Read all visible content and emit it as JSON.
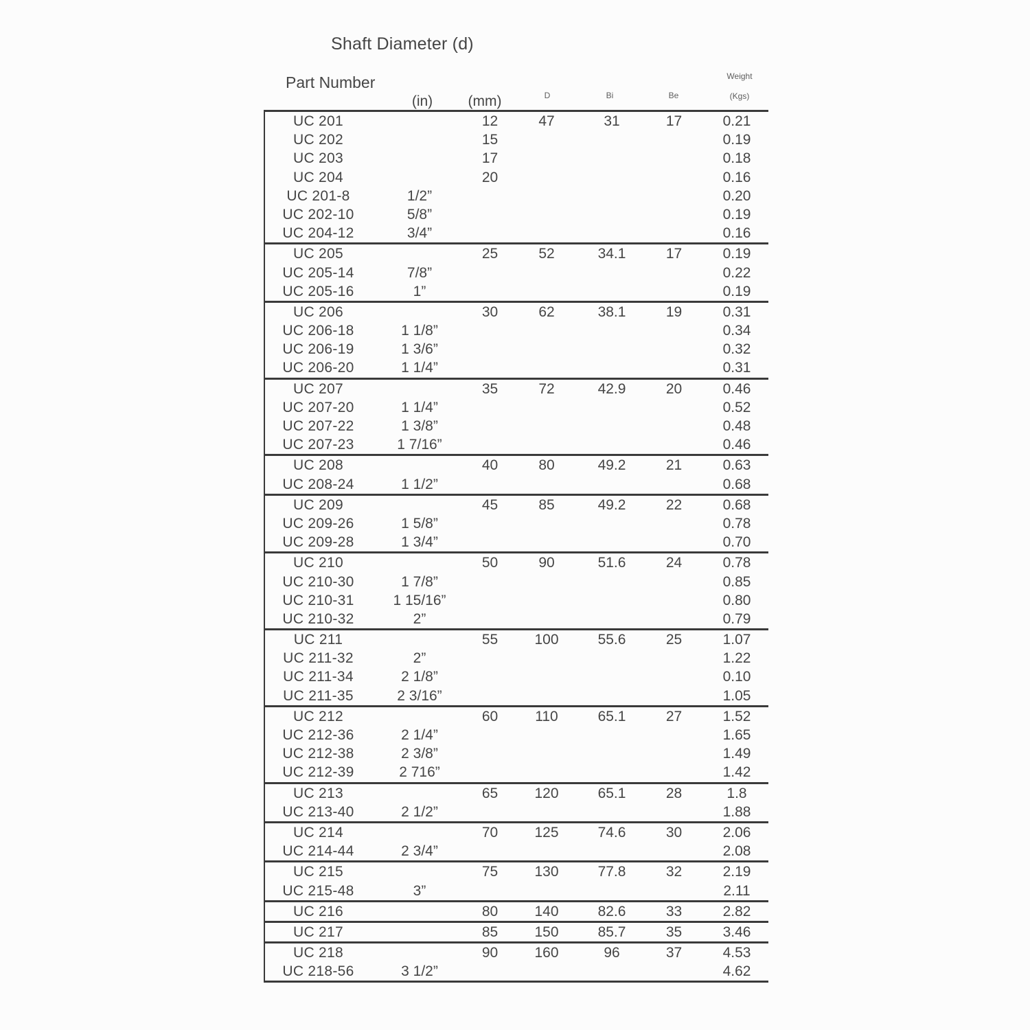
{
  "page": {
    "title": "Shaft Diameter (d)"
  },
  "colors": {
    "background": "#fcfcfc",
    "text": "#454545",
    "line": "#3a3a3a"
  },
  "header": {
    "part_number": "Part Number",
    "in_label": "(in)",
    "mm_label": "(mm)",
    "d_label": "D",
    "bi_label": "Bi",
    "be_label": "Be",
    "weight_label": "Weight",
    "kgs_label": "(Kgs)"
  },
  "table": {
    "columns": [
      "part-number",
      "shaft-diameter-in",
      "shaft-diameter-mm",
      "dim-d",
      "dim-bi",
      "dim-be",
      "weight-kgs"
    ],
    "groups": [
      [
        [
          "UC 201",
          "",
          "12",
          "47",
          "31",
          "17",
          "0.21"
        ],
        [
          "UC 202",
          "",
          "15",
          "",
          "",
          "",
          "0.19"
        ],
        [
          "UC 203",
          "",
          "17",
          "",
          "",
          "",
          "0.18"
        ],
        [
          "UC 204",
          "",
          "20",
          "",
          "",
          "",
          "0.16"
        ],
        [
          "UC 201-8",
          "1/2”",
          "",
          "",
          "",
          "",
          "0.20"
        ],
        [
          "UC 202-10",
          "5/8”",
          "",
          "",
          "",
          "",
          "0.19"
        ],
        [
          "UC 204-12",
          "3/4”",
          "",
          "",
          "",
          "",
          "0.16"
        ]
      ],
      [
        [
          "UC 205",
          "",
          "25",
          "52",
          "34.1",
          "17",
          "0.19"
        ],
        [
          "UC 205-14",
          "7/8”",
          "",
          "",
          "",
          "",
          "0.22"
        ],
        [
          "UC 205-16",
          "1”",
          "",
          "",
          "",
          "",
          "0.19"
        ]
      ],
      [
        [
          "UC 206",
          "",
          "30",
          "62",
          "38.1",
          "19",
          "0.31"
        ],
        [
          "UC 206-18",
          "1 1/8”",
          "",
          "",
          "",
          "",
          "0.34"
        ],
        [
          "UC 206-19",
          "1 3/6”",
          "",
          "",
          "",
          "",
          "0.32"
        ],
        [
          "UC 206-20",
          "1 1/4”",
          "",
          "",
          "",
          "",
          "0.31"
        ]
      ],
      [
        [
          "UC 207",
          "",
          "35",
          "72",
          "42.9",
          "20",
          "0.46"
        ],
        [
          "UC 207-20",
          "1 1/4”",
          "",
          "",
          "",
          "",
          "0.52"
        ],
        [
          "UC 207-22",
          "1 3/8”",
          "",
          "",
          "",
          "",
          "0.48"
        ],
        [
          "UC 207-23",
          "1 7/16”",
          "",
          "",
          "",
          "",
          "0.46"
        ]
      ],
      [
        [
          "UC 208",
          "",
          "40",
          "80",
          "49.2",
          "21",
          "0.63"
        ],
        [
          "UC 208-24",
          "1 1/2”",
          "",
          "",
          "",
          "",
          "0.68"
        ]
      ],
      [
        [
          "UC 209",
          "",
          "45",
          "85",
          "49.2",
          "22",
          "0.68"
        ],
        [
          "UC 209-26",
          "1 5/8”",
          "",
          "",
          "",
          "",
          "0.78"
        ],
        [
          "UC 209-28",
          "1 3/4”",
          "",
          "",
          "",
          "",
          "0.70"
        ]
      ],
      [
        [
          "UC 210",
          "",
          "50",
          "90",
          "51.6",
          "24",
          "0.78"
        ],
        [
          "UC 210-30",
          "1 7/8”",
          "",
          "",
          "",
          "",
          "0.85"
        ],
        [
          "UC 210-31",
          "1 15/16”",
          "",
          "",
          "",
          "",
          "0.80"
        ],
        [
          "UC 210-32",
          "2”",
          "",
          "",
          "",
          "",
          "0.79"
        ]
      ],
      [
        [
          "UC 211",
          "",
          "55",
          "100",
          "55.6",
          "25",
          "1.07"
        ],
        [
          "UC 211-32",
          "2”",
          "",
          "",
          "",
          "",
          "1.22"
        ],
        [
          "UC 211-34",
          "2 1/8”",
          "",
          "",
          "",
          "",
          "0.10"
        ],
        [
          "UC 211-35",
          "2 3/16”",
          "",
          "",
          "",
          "",
          "1.05"
        ]
      ],
      [
        [
          "UC 212",
          "",
          "60",
          "110",
          "65.1",
          "27",
          "1.52"
        ],
        [
          "UC 212-36",
          "2 1/4”",
          "",
          "",
          "",
          "",
          "1.65"
        ],
        [
          "UC 212-38",
          "2 3/8”",
          "",
          "",
          "",
          "",
          "1.49"
        ],
        [
          "UC 212-39",
          "2 716”",
          "",
          "",
          "",
          "",
          "1.42"
        ]
      ],
      [
        [
          "UC 213",
          "",
          "65",
          "120",
          "65.1",
          "28",
          "1.8"
        ],
        [
          "UC 213-40",
          "2 1/2”",
          "",
          "",
          "",
          "",
          "1.88"
        ]
      ],
      [
        [
          "UC 214",
          "",
          "70",
          "125",
          "74.6",
          "30",
          "2.06"
        ],
        [
          "UC 214-44",
          "2 3/4”",
          "",
          "",
          "",
          "",
          "2.08"
        ]
      ],
      [
        [
          "UC 215",
          "",
          "75",
          "130",
          "77.8",
          "32",
          "2.19"
        ],
        [
          "UC 215-48",
          "3”",
          "",
          "",
          "",
          "",
          "2.11"
        ]
      ],
      [
        [
          "UC 216",
          "",
          "80",
          "140",
          "82.6",
          "33",
          "2.82"
        ]
      ],
      [
        [
          "UC 217",
          "",
          "85",
          "150",
          "85.7",
          "35",
          "3.46"
        ]
      ],
      [
        [
          "UC 218",
          "",
          "90",
          "160",
          "96",
          "37",
          "4.53"
        ],
        [
          "UC 218-56",
          "3 1/2”",
          "",
          "",
          "",
          "",
          "4.62"
        ]
      ]
    ]
  }
}
